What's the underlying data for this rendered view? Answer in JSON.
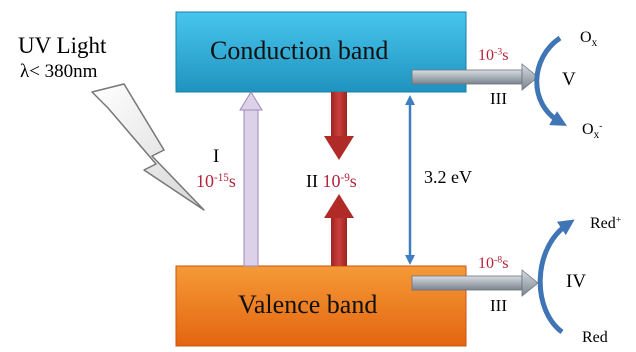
{
  "light": {
    "title": "UV Light",
    "wavelength": "λ< 380nm"
  },
  "bands": {
    "conduction": "Conduction band",
    "valence": "Valence band"
  },
  "gap": "3.2 eV",
  "step1": {
    "roman": "I",
    "time_base": "10",
    "time_exp": "-15",
    "time_unit": "s"
  },
  "step2": {
    "roman": "II",
    "time_base": "10",
    "time_exp": "-9",
    "time_unit": "s"
  },
  "step3_top": {
    "roman": "III",
    "time_base": "10",
    "time_exp": "-3",
    "time_unit": "s"
  },
  "step3_bottom": {
    "roman": "III",
    "time_base": "10",
    "time_exp": "-8",
    "time_unit": "s"
  },
  "oxidation": {
    "roman": "V",
    "species": "O",
    "species_sub": "x",
    "product": "O",
    "product_sub": "x",
    "product_sup": "-"
  },
  "reduction": {
    "roman": "IV",
    "product": "Red",
    "product_sup": "+",
    "species": "Red"
  },
  "colors": {
    "conduction_band": "#29a6d3",
    "valence_band": "#ee7a1e",
    "excitation_arrow": "#c9b6de",
    "recombination_arrow": "#b8302d",
    "gap_arrow": "#3f7fc1",
    "transfer_arrow": "#8c96a0",
    "curve_arrow": "#3f74b5",
    "time_text": "#b3243c"
  }
}
